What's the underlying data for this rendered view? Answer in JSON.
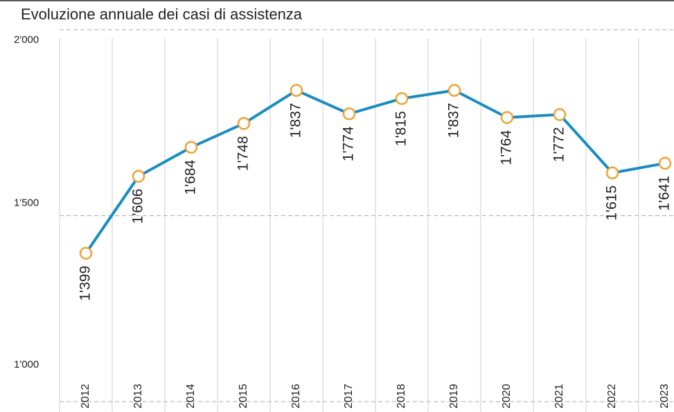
{
  "chart_data": {
    "type": "line",
    "title": "Evoluzione annuale dei casi di assistenza",
    "categories": [
      "2012",
      "2013",
      "2014",
      "2015",
      "2016",
      "2017",
      "2018",
      "2019",
      "2020",
      "2021",
      "2022",
      "2023"
    ],
    "values": [
      1399,
      1606,
      1684,
      1748,
      1837,
      1774,
      1815,
      1837,
      1764,
      1772,
      1615,
      1641
    ],
    "value_labels": [
      "1'399",
      "1'606",
      "1'684",
      "1'748",
      "1'837",
      "1'774",
      "1'815",
      "1'837",
      "1'764",
      "1'772",
      "1'615",
      "1'641"
    ],
    "color": "#1a8cc0",
    "marker_color": "#f0a232",
    "ylim": [
      1000,
      2000
    ],
    "yticks": [
      {
        "value": 1000,
        "label": "1'000"
      },
      {
        "value": 1500,
        "label": "1'500"
      },
      {
        "value": 2000,
        "label": "2'000"
      }
    ],
    "grid": true
  }
}
